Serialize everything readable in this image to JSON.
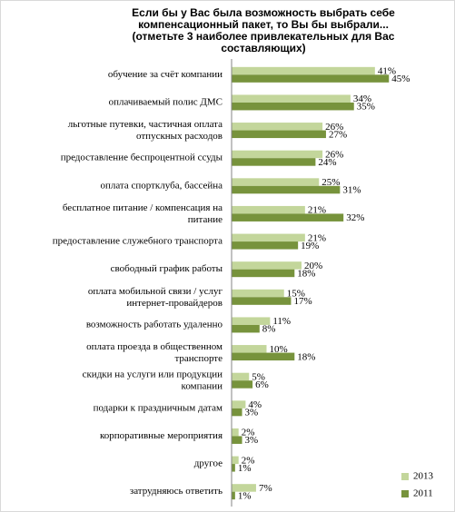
{
  "chart_data": {
    "type": "bar",
    "orientation": "horizontal",
    "title": [
      "Если бы у Вас была возможность выбрать себе",
      "компенсационный пакет, то Вы бы выбрали...",
      "(отметьте 3 наиболее привлекательных  для Вас",
      "составляющих)"
    ],
    "categories": [
      "обучение за счёт компании",
      "оплачиваемый полис ДМС",
      "льготные путевки, частичная оплата\nотпускных расходов",
      "предоставление беспроцентной ссуды",
      "оплата спортклуба, бассейна",
      "бесплатное питание / компенсация на\nпитание",
      "предоставление служебного транспорта",
      "свободный график работы",
      "оплата мобильной связи / услуг\nинтернет-провайдеров",
      "возможность работать удаленно",
      "оплата проезда в общественном\nтранспорте",
      "скидки на услуги или продукции\nкомпании",
      "подарки к праздничным датам",
      "корпоративные мероприятия",
      "другое",
      "затрудняюсь ответить"
    ],
    "series": [
      {
        "name": "2013",
        "color": "#c3d69b",
        "values": [
          41,
          34,
          26,
          26,
          25,
          21,
          21,
          20,
          15,
          11,
          10,
          5,
          4,
          2,
          2,
          7
        ],
        "value_labels": [
          "41%",
          "34%",
          "26%",
          "26%",
          "25%",
          "21%",
          "21%",
          "20%",
          "15%",
          "11%",
          "10%",
          "5%",
          "4%",
          "2%",
          "2%",
          "7%"
        ]
      },
      {
        "name": "2011",
        "color": "#77933c",
        "values": [
          45,
          35,
          27,
          24,
          31,
          32,
          19,
          18,
          17,
          8,
          18,
          6,
          3,
          3,
          1,
          1
        ],
        "value_labels": [
          "45%",
          "35%",
          "27%",
          "24%",
          "31%",
          "32%",
          "19%",
          "18%",
          "17%",
          "8%",
          "18%",
          "6%",
          "3%",
          "3%",
          "1%",
          "1%"
        ]
      }
    ],
    "xlim": [
      0,
      60
    ],
    "legend": "bottom-right"
  }
}
